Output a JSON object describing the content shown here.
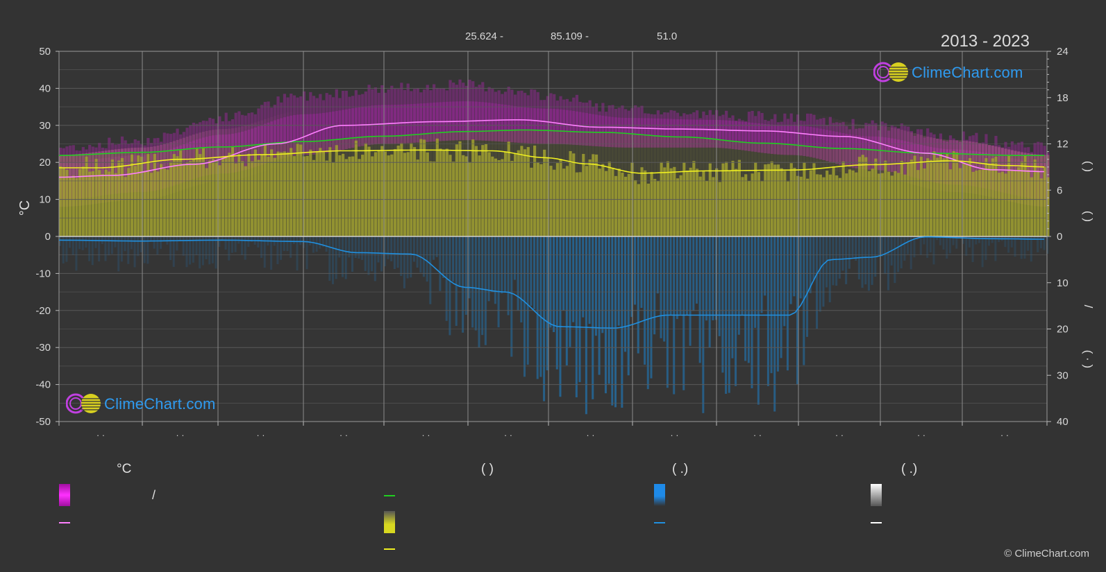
{
  "header": {
    "period": "2013 - 2023",
    "coords": [
      "25.624 -",
      "85.109 -",
      "51.0"
    ],
    "brand": "ClimeChart.com",
    "copyright": "© ClimeChart.com"
  },
  "axes": {
    "left_label": "°C",
    "right_label_top": "(   )",
    "right_label_mid": "(   )",
    "right_label_slash": "/",
    "right_label_bottom": "(  ·  )",
    "month_labels": [
      "· ·",
      "· ·",
      "· ·",
      "· ·",
      "· ·",
      "· ·",
      "· ·",
      "· ·",
      "· ·",
      "· ·",
      "· ·",
      "· ·"
    ]
  },
  "legend": {
    "col1_head": "°C",
    "col1_slash": "/",
    "col2_head": "(          )",
    "col3_head": "(   .)",
    "col4_head": "(   .)"
  },
  "colors": {
    "background": "#333333",
    "grid": "#5a5a5a",
    "temp_range": "#d020d0",
    "daily_min_pink": "#e070a8",
    "mean_temp_line": "#ff80ff",
    "daylight_line": "#20d020",
    "sunshine_fill": "#a0a030",
    "sunshine_line": "#f0f020",
    "precip_fill": "#2078b8",
    "precip_line": "#2090e0",
    "snow_line": "#ffffff"
  },
  "chart_data": {
    "type": "area",
    "title": "",
    "months": 12,
    "x_days": [
      0,
      15,
      45,
      75,
      105,
      135,
      165,
      195,
      225,
      255,
      285,
      315,
      345,
      365
    ],
    "left_axis": {
      "ylim": [
        -50,
        50
      ],
      "ticks": [
        50,
        40,
        30,
        20,
        10,
        0,
        -10,
        -20,
        -30,
        -40,
        -50
      ]
    },
    "right_axis_hours": {
      "ylim": [
        0,
        24
      ],
      "ticks": [
        24,
        18,
        12,
        6,
        0
      ]
    },
    "right_axis_precip": {
      "ylim": [
        0,
        40
      ],
      "ticks": [
        0,
        10,
        20,
        30,
        40
      ]
    },
    "grid": true,
    "series": [
      {
        "key": "mean_temp",
        "kind": "line",
        "x": [
          0,
          20,
          50,
          80,
          105,
          140,
          170,
          200,
          230,
          260,
          290,
          320,
          345,
          365
        ],
        "values": [
          16,
          16.5,
          19.5,
          25,
          30,
          31,
          31.5,
          29.5,
          29,
          28.5,
          27,
          22.5,
          18,
          17.5
        ]
      },
      {
        "key": "daylight",
        "kind": "line",
        "axis": "hours",
        "x": [
          0,
          30,
          60,
          90,
          120,
          150,
          172,
          200,
          230,
          260,
          290,
          320,
          355,
          365
        ],
        "values": [
          10.5,
          10.9,
          11.6,
          12.3,
          13.0,
          13.6,
          13.8,
          13.5,
          12.9,
          12.1,
          11.4,
          10.8,
          10.5,
          10.5
        ]
      },
      {
        "key": "sunshine",
        "kind": "line",
        "axis": "hours",
        "x": [
          0,
          15,
          45,
          75,
          105,
          135,
          160,
          180,
          195,
          215,
          240,
          270,
          300,
          330,
          350,
          365
        ],
        "values": [
          8.9,
          8.9,
          10.0,
          10.6,
          11.1,
          11.2,
          11.1,
          10.2,
          9.4,
          8.2,
          8.5,
          8.6,
          9.3,
          9.8,
          9.2,
          9.0
        ]
      },
      {
        "key": "precip",
        "kind": "line",
        "axis": "precip",
        "x": [
          0,
          30,
          60,
          90,
          110,
          130,
          150,
          165,
          185,
          205,
          225,
          250,
          270,
          285,
          300,
          320,
          345,
          365
        ],
        "values": [
          0.8,
          1.0,
          0.8,
          1.1,
          3.5,
          3.8,
          11.0,
          12.0,
          19.5,
          19.8,
          17.0,
          17.0,
          17.0,
          5.0,
          4.5,
          0.1,
          0.5,
          0.6
        ]
      },
      {
        "key": "temp_max_band",
        "kind": "band",
        "x": [
          0,
          30,
          60,
          90,
          120,
          150,
          180,
          210,
          240,
          270,
          300,
          330,
          365
        ],
        "upper": [
          24,
          26,
          32,
          38,
          40,
          41,
          38,
          34,
          33,
          32,
          30,
          27,
          24
        ],
        "lower": [
          10,
          12,
          17,
          22,
          25,
          26,
          25,
          24,
          24,
          22,
          18,
          14,
          10
        ]
      }
    ]
  }
}
